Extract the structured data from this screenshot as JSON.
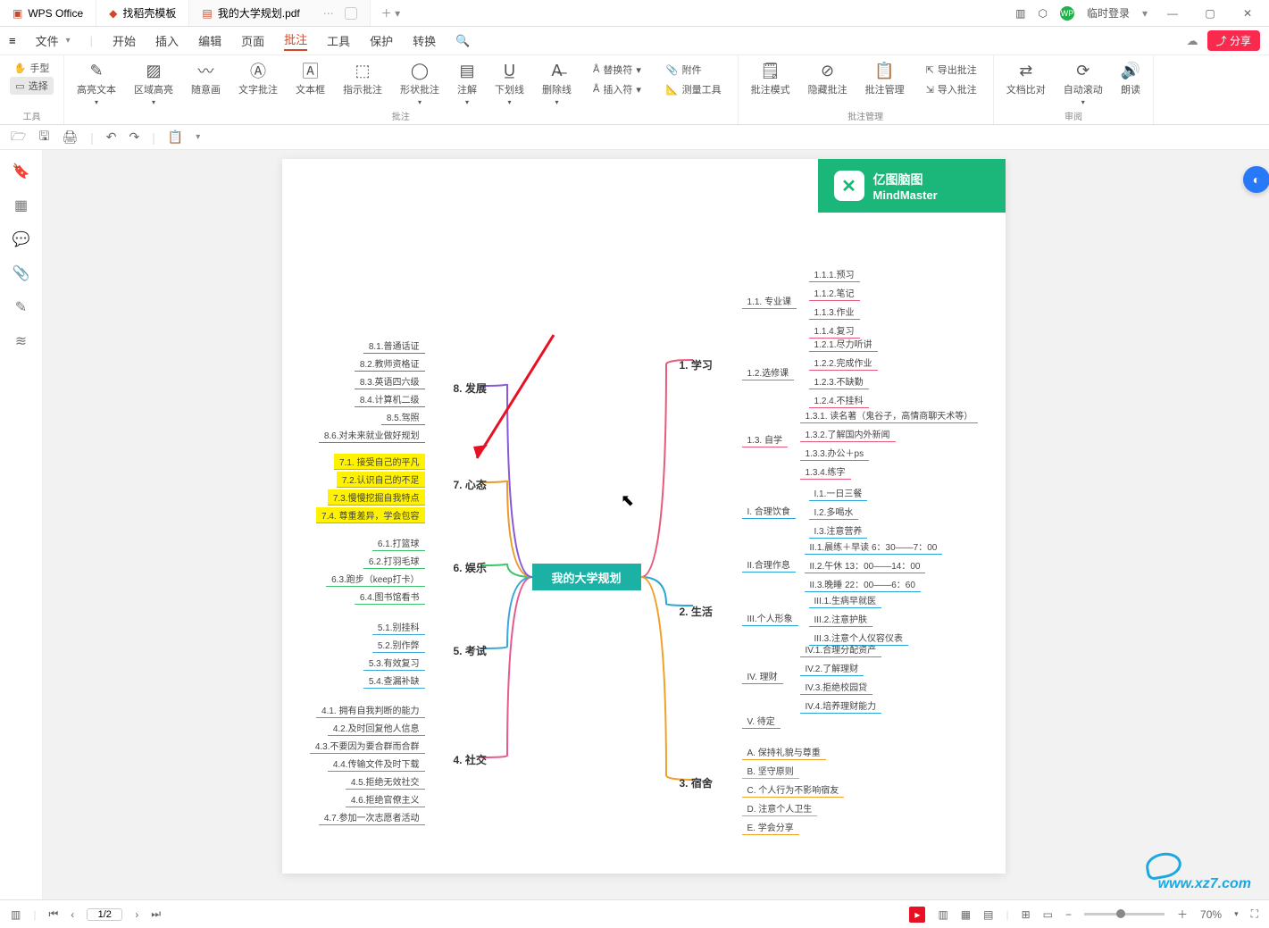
{
  "titlebar": {
    "app": "WPS Office",
    "tab1": "找稻壳模板",
    "tab2": "我的大学规划.pdf",
    "login": "临时登录"
  },
  "menubar": {
    "file": "文件",
    "items": [
      "开始",
      "插入",
      "编辑",
      "页面",
      "批注",
      "工具",
      "保护",
      "转换"
    ],
    "active_index": 4,
    "share": "分享"
  },
  "ribbon": {
    "tools_group": "工具",
    "hand": "手型",
    "select": "选择",
    "highlight": "高亮文本",
    "area": "区域高亮",
    "freehand": "随意画",
    "text_annot": "文字批注",
    "textbox": "文本框",
    "callout": "指示批注",
    "shape": "形状批注",
    "note": "注解",
    "underline": "下划线",
    "strike": "删除线",
    "replace": "替换符",
    "insert_char": "插入符",
    "attach": "附件",
    "measure": "测量工具",
    "annot_group": "批注",
    "annot_mode": "批注模式",
    "hide_annot": "隐藏批注",
    "manage_annot": "批注管理",
    "export_annot": "导出批注",
    "import_annot": "导入批注",
    "annot_mgr_group": "批注管理",
    "compare": "文档比对",
    "autoscroll": "自动滚动",
    "read": "朗读",
    "review_group": "审阅"
  },
  "mindmap": {
    "brand_cn": "亿图脑图",
    "brand_en": "MindMaster",
    "center": "我的大学规划",
    "b1": {
      "label": "1. 学习",
      "color": "#e85a7b",
      "n11": {
        "label": "1.1. 专业课",
        "leaves": [
          "1.1.1.预习",
          "1.1.2.笔记",
          "1.1.3.作业",
          "1.1.4.复习"
        ]
      },
      "n12": {
        "label": "1.2.选修课",
        "leaves": [
          "1.2.1.尽力听讲",
          "1.2.2.完成作业",
          "1.2.3.不缺勤",
          "1.2.4.不挂科"
        ]
      },
      "n13": {
        "label": "1.3. 自学",
        "leaves": [
          "1.3.1. 读名著（鬼谷子，高情商聊天术等）",
          "1.3.2.了解国内外新闻",
          "1.3.3.办公＋ps",
          "1.3.4.练字"
        ]
      }
    },
    "b2": {
      "label": "2. 生活",
      "color": "#2aa6d6",
      "n21": {
        "label": "I. 合理饮食",
        "leaves": [
          "I.1.一日三餐",
          "I.2.多喝水",
          "I.3.注意营养"
        ]
      },
      "n22": {
        "label": "II.合理作息",
        "leaves": [
          "II.1.晨练＋早读 6：30——7：00",
          "II.2.午休 13：00——14：00",
          "II.3.晚睡 22：00——6：60"
        ]
      },
      "n23": {
        "label": "III.个人形象",
        "leaves": [
          "III.1.生病早就医",
          "III.2.注意护肤",
          "III.3.注意个人仪容仪表"
        ]
      },
      "n24": {
        "label": "IV. 理财",
        "leaves": [
          "IV.1.合理分配资产",
          "IV.2.了解理财",
          "IV.3.拒绝校园贷",
          "IV.4.培养理财能力"
        ]
      },
      "n25": {
        "label": "V. 待定",
        "leaves": []
      }
    },
    "b3": {
      "label": "3. 宿舍",
      "color": "#f1a12a",
      "leaves": [
        "A. 保持礼貌与尊重",
        "B. 坚守原则",
        "C. 个人行为不影响宿友",
        "D. 注意个人卫生",
        "E. 学会分享"
      ]
    },
    "b4": {
      "label": "4. 社交",
      "color": "#e85a8f",
      "leaves": [
        "4.1. 拥有自我判断的能力",
        "4.2.及时回复他人信息",
        "4.3.不要因为要合群而合群",
        "4.4.传输文件及时下载",
        "4.5.拒绝无效社交",
        "4.6.拒绝官僚主义",
        "4.7.参加一次志愿者活动"
      ]
    },
    "b5": {
      "label": "5. 考试",
      "color": "#3aa8d8",
      "leaves": [
        "5.1.别挂科",
        "5.2.别作弊",
        "5.3.有效复习",
        "5.4.查漏补缺"
      ]
    },
    "b6": {
      "label": "6. 娱乐",
      "color": "#3cc46a",
      "leaves": [
        "6.1.打篮球",
        "6.2.打羽毛球",
        "6.3.跑步（keep打卡）",
        "6.4.图书馆看书"
      ]
    },
    "b7": {
      "label": "7. 心态",
      "color": "#e89a2a",
      "leaves": [
        "7.1. 接受自己的平凡",
        "7.2.认识自己的不足",
        "7.3.慢慢挖掘自我特点",
        "7.4. 尊重差异，学会包容"
      ]
    },
    "b8": {
      "label": "8. 发展",
      "color": "#8a5ad6",
      "leaves": [
        "8.1.普通话证",
        "8.2.教师资格证",
        "8.3.英语四六级",
        "8.4.计算机二级",
        "8.5.驾照",
        "8.6.对未来就业做好规划"
      ]
    }
  },
  "statusbar": {
    "page": "1/2",
    "zoom": "70%"
  },
  "watermark": "www.xz7.com"
}
